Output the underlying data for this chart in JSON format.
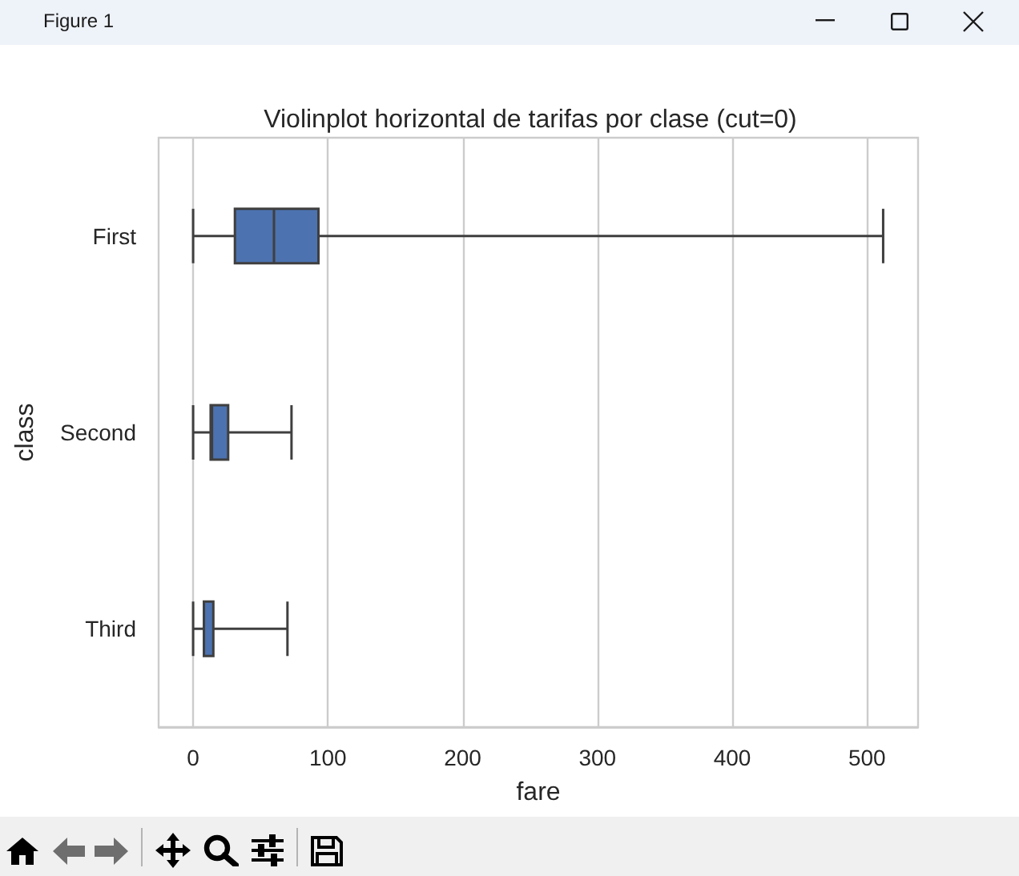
{
  "chart_data": {
    "type": "box",
    "orientation": "horizontal",
    "title": "Violinplot horizontal de tarifas por clase (cut=0)",
    "xlabel": "fare",
    "ylabel": "class",
    "categories": [
      "First",
      "Second",
      "Third"
    ],
    "color": "#4c72b0",
    "boxes": [
      {
        "low": 0,
        "q1": 31,
        "median": 60,
        "q3": 93,
        "high": 512
      },
      {
        "low": 0,
        "q1": 13,
        "median": 14,
        "q3": 26,
        "high": 73
      },
      {
        "low": 0,
        "q1": 8,
        "median": 8,
        "q3": 15,
        "high": 70
      }
    ],
    "xlim": [
      -25.6,
      537.9
    ],
    "xticks": [
      0,
      100,
      200,
      300,
      400,
      500
    ],
    "grid": "x",
    "annotations": [
      "Figure 1"
    ]
  }
}
